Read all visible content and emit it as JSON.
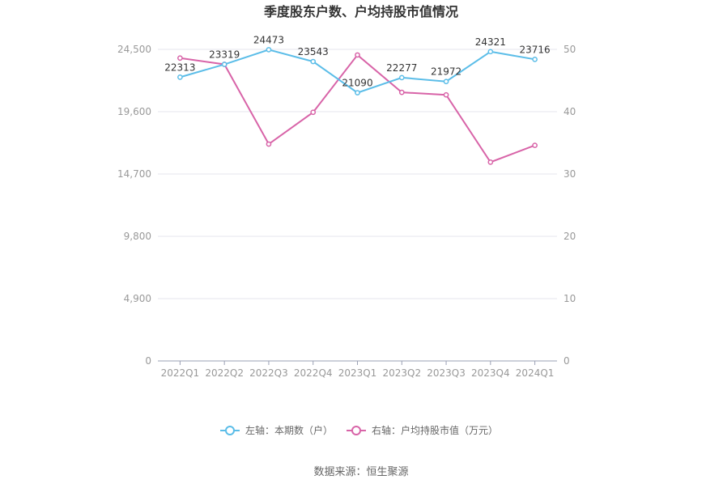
{
  "chart_data": {
    "type": "line",
    "title": "季度股东户数、户均持股市值情况",
    "categories": [
      "2022Q1",
      "2022Q2",
      "2022Q3",
      "2022Q4",
      "2023Q1",
      "2023Q2",
      "2023Q3",
      "2023Q4",
      "2024Q1"
    ],
    "left_axis": {
      "ticks": [
        "0",
        "4,900",
        "9,800",
        "14,700",
        "19,600",
        "24,500"
      ],
      "ylim": [
        0,
        24500
      ]
    },
    "right_axis": {
      "ticks": [
        "0",
        "10",
        "20",
        "30",
        "40",
        "50"
      ],
      "ylim": [
        0,
        50
      ]
    },
    "series": [
      {
        "name": "左轴：本期数（户）",
        "axis": "left",
        "color": "#5bbde8",
        "values": [
          22313,
          23319,
          24473,
          23543,
          21090,
          22277,
          21972,
          24321,
          23716
        ],
        "labels": [
          "22313",
          "23319",
          "24473",
          "23543",
          "21090",
          "22277",
          "21972",
          "24321",
          "23716"
        ]
      },
      {
        "name": "右轴：户均持股市值（万元）",
        "axis": "right",
        "color": "#d864a8",
        "values": [
          48.6,
          47.6,
          34.8,
          39.9,
          49.1,
          43.1,
          42.7,
          31.9,
          34.6
        ]
      }
    ],
    "grid": true,
    "legend": "bottom"
  },
  "source": "数据来源：恒生聚源"
}
